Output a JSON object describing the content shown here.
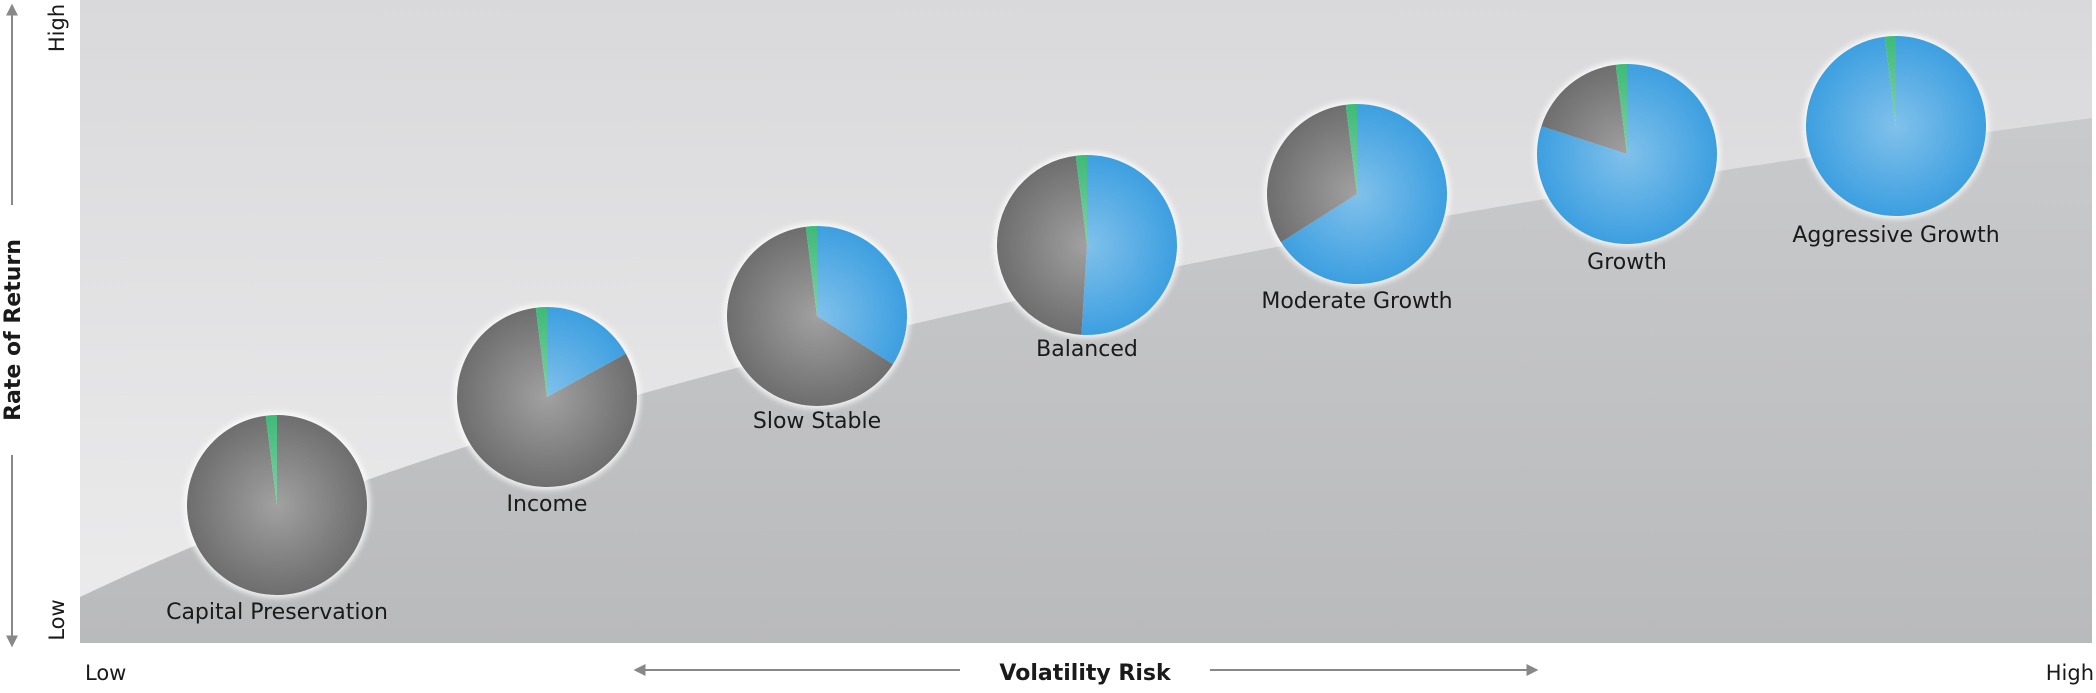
{
  "chart_data": {
    "type": "pie",
    "y_label": "Rate of Return",
    "y_high": "High",
    "y_low": "Low",
    "x_label": "Volatility Risk",
    "x_low": "Low",
    "x_high": "High",
    "colors": [
      "#3d9fe0",
      "#6e6e6e",
      "#3dba78"
    ],
    "pies": [
      {
        "label": "Capital Preservation",
        "values": [
          0,
          98,
          2
        ]
      },
      {
        "label": "Income",
        "values": [
          17,
          81,
          2
        ]
      },
      {
        "label": "Slow Stable",
        "values": [
          34,
          64,
          2
        ]
      },
      {
        "label": "Balanced",
        "values": [
          51,
          47,
          2
        ]
      },
      {
        "label": "Moderate Growth",
        "values": [
          66,
          32,
          2
        ]
      },
      {
        "label": "Growth",
        "values": [
          80,
          18,
          2
        ]
      },
      {
        "label": "Aggressive Growth",
        "values": [
          98,
          0,
          2
        ]
      }
    ]
  }
}
